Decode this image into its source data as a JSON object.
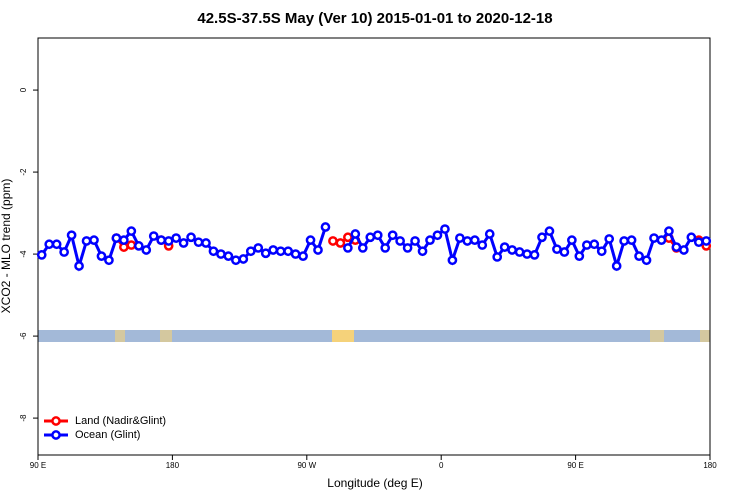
{
  "chart_data": {
    "type": "line",
    "title": "42.5S-37.5S May (Ver 10)   2015-01-01 to 2020-12-18",
    "x_label": "Longitude (deg E)",
    "y_label": "XCO2 - MLO trend (ppm)",
    "xlim": [
      90,
      540
    ],
    "ylim": [
      -8.9,
      1.27
    ],
    "xticks": [
      {
        "value": 90,
        "label": "90 E"
      },
      {
        "value": 180,
        "label": "180"
      },
      {
        "value": 270,
        "label": "90 W"
      },
      {
        "value": 360,
        "label": "0"
      },
      {
        "value": 450,
        "label": "90 E"
      },
      {
        "value": 540,
        "label": "180"
      }
    ],
    "yticks": [
      -8,
      -6,
      -4,
      -2,
      0
    ],
    "legend": "bottom-left",
    "x": [
      92.5,
      97.5,
      102.5,
      107.5,
      112.5,
      117.5,
      122.5,
      127.5,
      132.5,
      137.5,
      142.5,
      147.5,
      152.5,
      157.5,
      162.5,
      167.5,
      172.5,
      177.5,
      182.5,
      187.5,
      192.5,
      197.5,
      202.5,
      207.5,
      212.5,
      217.5,
      222.5,
      227.5,
      232.5,
      237.5,
      242.5,
      247.5,
      252.5,
      257.5,
      262.5,
      267.5,
      272.5,
      277.5,
      282.5,
      287.5,
      292.5,
      297.5,
      302.5,
      307.5,
      312.5,
      317.5,
      322.5,
      327.5,
      332.5,
      337.5,
      342.5,
      347.5,
      352.5,
      357.5,
      362.5,
      367.5,
      372.5,
      377.5,
      382.5,
      387.5,
      392.5,
      397.5,
      402.5,
      407.5,
      412.5,
      417.5,
      422.5,
      427.5,
      432.5,
      437.5,
      442.5,
      447.5,
      452.5,
      457.5,
      462.5,
      467.5,
      472.5,
      477.5,
      482.5,
      487.5,
      492.5,
      497.5,
      502.5,
      507.5,
      512.5,
      517.5,
      522.5,
      527.5,
      532.5,
      537.5
    ],
    "series": [
      {
        "name": "Land (Nadir&Glint)",
        "color": "#ff0000",
        "values": [
          null,
          null,
          null,
          null,
          null,
          null,
          null,
          null,
          null,
          null,
          -3.61,
          -3.83,
          -3.78,
          null,
          null,
          null,
          -3.66,
          -3.8,
          null,
          null,
          null,
          null,
          null,
          null,
          null,
          null,
          null,
          null,
          null,
          null,
          null,
          null,
          null,
          null,
          null,
          null,
          null,
          null,
          null,
          -3.68,
          -3.73,
          -3.59,
          -3.66,
          null,
          null,
          null,
          null,
          null,
          null,
          null,
          null,
          null,
          null,
          null,
          null,
          null,
          null,
          null,
          null,
          null,
          null,
          null,
          null,
          null,
          null,
          null,
          null,
          null,
          null,
          null,
          null,
          null,
          null,
          null,
          null,
          null,
          null,
          null,
          null,
          null,
          null,
          null,
          null,
          null,
          -3.61,
          -3.85,
          null,
          null,
          -3.66,
          -3.8
        ]
      },
      {
        "name": "Ocean (Glint)",
        "color": "#0000ff",
        "values": [
          -4.02,
          -3.76,
          -3.76,
          -3.95,
          -3.54,
          -4.29,
          -3.68,
          -3.66,
          -4.05,
          -4.15,
          -3.61,
          -3.66,
          -3.44,
          -3.8,
          -3.9,
          -3.56,
          -3.66,
          -3.68,
          -3.61,
          -3.73,
          -3.59,
          -3.71,
          -3.73,
          -3.93,
          -4.0,
          -4.05,
          -4.15,
          -4.12,
          -3.93,
          -3.85,
          -3.98,
          -3.9,
          -3.93,
          -3.93,
          -4.0,
          -4.05,
          -3.66,
          -3.9,
          -3.34,
          null,
          null,
          -3.85,
          -3.51,
          -3.85,
          -3.59,
          -3.54,
          -3.85,
          -3.54,
          -3.68,
          -3.85,
          -3.68,
          -3.93,
          -3.66,
          -3.54,
          -3.39,
          -4.15,
          -3.61,
          -3.68,
          -3.66,
          -3.78,
          -3.51,
          -4.07,
          -3.83,
          -3.9,
          -3.95,
          -4.0,
          -4.02,
          -3.59,
          -3.44,
          -3.88,
          -3.95,
          -3.66,
          -4.05,
          -3.78,
          -3.76,
          -3.93,
          -3.63,
          -4.29,
          -3.68,
          -3.66,
          -4.05,
          -4.15,
          -3.61,
          -3.66,
          -3.44,
          -3.83,
          -3.9,
          -3.59,
          -3.71,
          -3.68
        ]
      }
    ]
  }
}
